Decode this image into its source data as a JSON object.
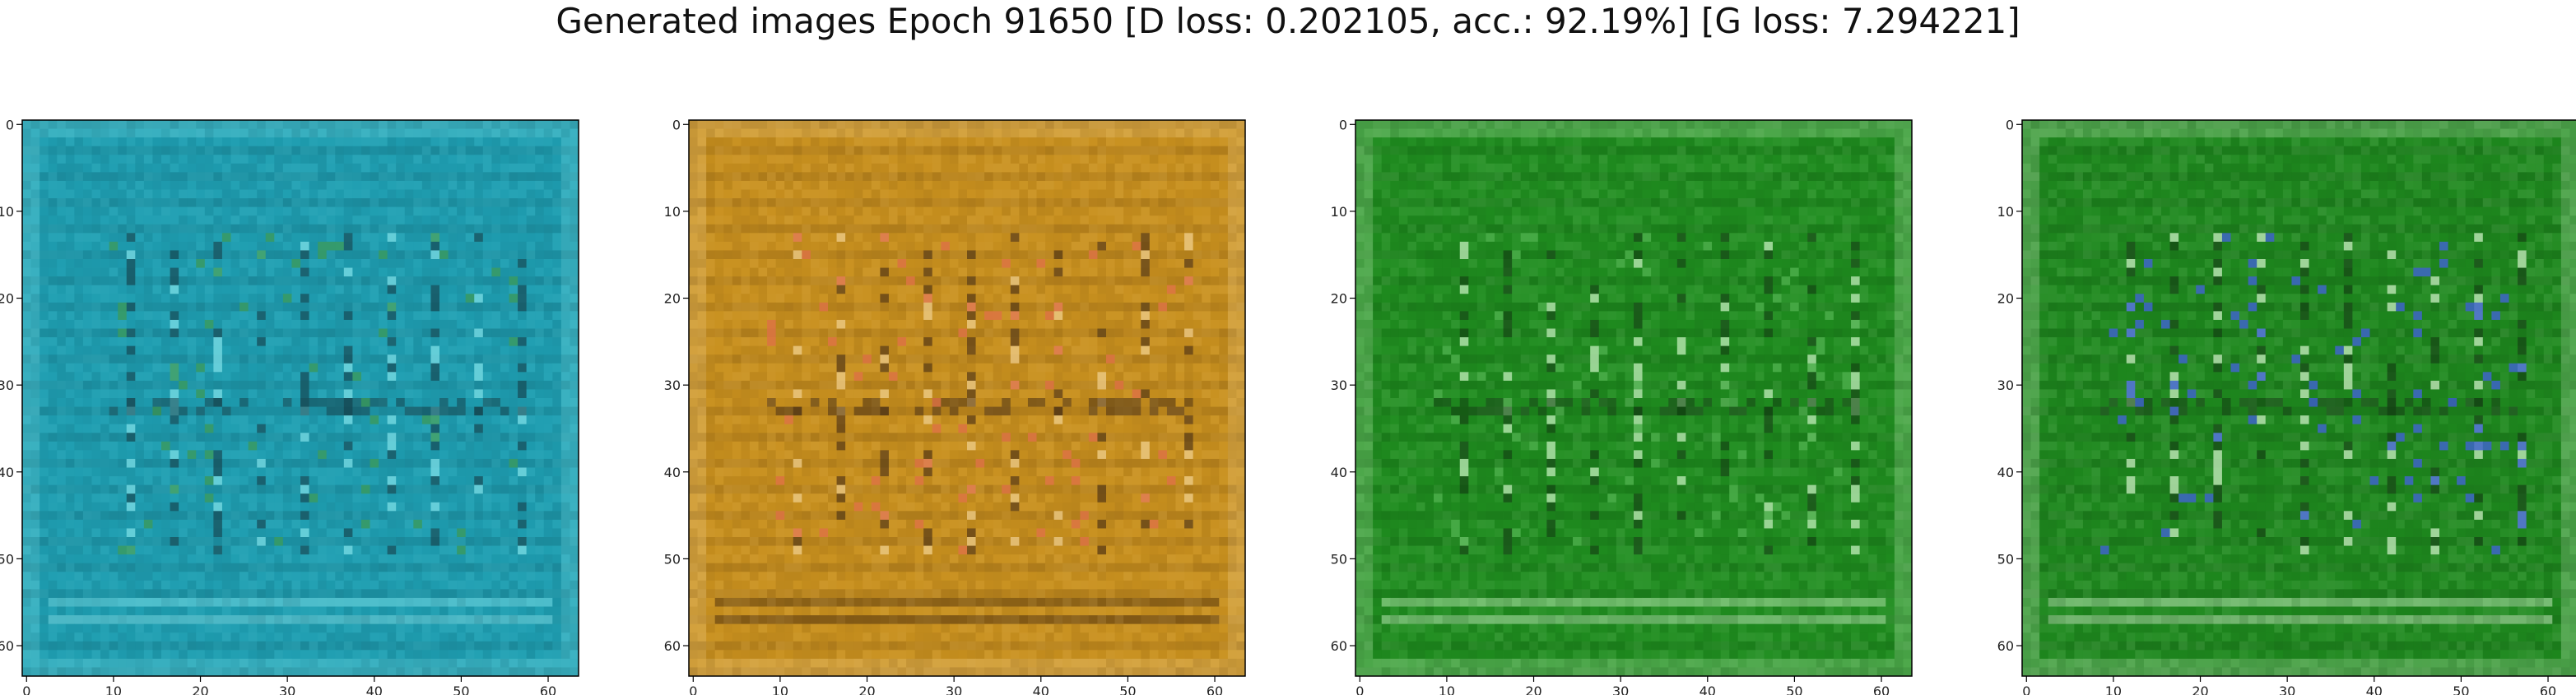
{
  "figure": {
    "title": "Generated images Epoch 91650 [D loss: 0.202105, acc.: 92.19%] [G loss: 7.294221]"
  },
  "axes": {
    "xticks": [
      "0",
      "10",
      "20",
      "30",
      "40",
      "50",
      "60"
    ],
    "yticks": [
      "0",
      "10",
      "20",
      "30",
      "40",
      "50",
      "60"
    ],
    "xlim": [
      -0.5,
      63.5
    ],
    "ylim_inverted": [
      63.5,
      -0.5
    ]
  },
  "panels": [
    {
      "name": "cyan-generated-sample",
      "base": "#1e9db0",
      "accent": "#7fe0e8",
      "dark": "#0f3f4a",
      "pattern": "#2f8f4a"
    },
    {
      "name": "ochre-generated-sample",
      "base": "#c8901e",
      "accent": "#f0d090",
      "dark": "#4a2e0e",
      "pattern": "#d9643a"
    },
    {
      "name": "green-generated-sample-a",
      "base": "#1f8c1f",
      "accent": "#c8f0c0",
      "dark": "#0a3a0a",
      "pattern": "#3aa53a"
    },
    {
      "name": "green-generated-sample-b",
      "base": "#1e881e",
      "accent": "#d0f0c8",
      "dark": "#0a380a",
      "pattern": "#2a4fd0"
    }
  ]
}
